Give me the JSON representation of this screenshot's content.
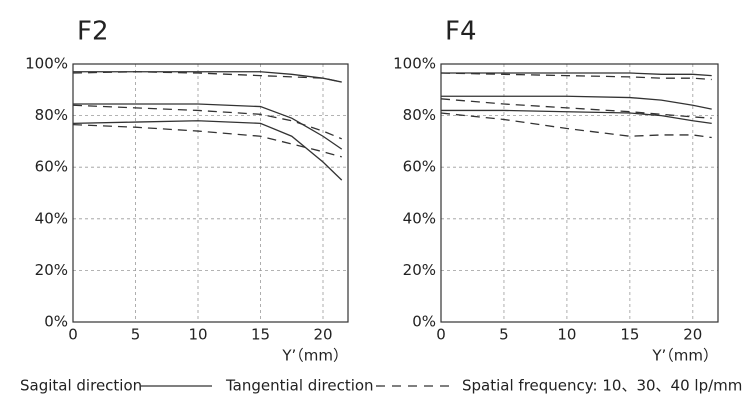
{
  "chart_data": [
    {
      "type": "line",
      "title": "F2",
      "x_label": "Y’（mm）",
      "x": [
        0,
        5,
        10,
        15,
        17.5,
        20,
        21.5
      ],
      "xlim": [
        0,
        22
      ],
      "xticks": [
        0,
        5,
        10,
        15,
        20
      ],
      "ylim": [
        0,
        100
      ],
      "yticks": [
        {
          "value": 0,
          "label": "0%"
        },
        {
          "value": 20,
          "label": "20%"
        },
        {
          "value": 40,
          "label": "40%"
        },
        {
          "value": 60,
          "label": "60%"
        },
        {
          "value": 80,
          "label": "80%"
        },
        {
          "value": 100,
          "label": "100%"
        }
      ],
      "grid": true,
      "series": [
        {
          "style": "solid",
          "color": "#333333",
          "values": [
            97,
            97,
            97,
            97,
            96,
            94.5,
            93
          ]
        },
        {
          "style": "dashed",
          "color": "#333333",
          "values": [
            96.5,
            97,
            96.5,
            95.5,
            95,
            94.5,
            93
          ]
        },
        {
          "style": "solid",
          "color": "#333333",
          "values": [
            84.5,
            84.5,
            84.5,
            83.5,
            79,
            72,
            67
          ]
        },
        {
          "style": "dashed",
          "color": "#333333",
          "values": [
            84,
            83,
            82,
            80.5,
            78,
            74,
            71
          ]
        },
        {
          "style": "solid",
          "color": "#333333",
          "values": [
            77,
            77.5,
            78,
            77,
            72,
            62,
            55
          ]
        },
        {
          "style": "dashed",
          "color": "#333333",
          "values": [
            76.5,
            75.5,
            74,
            72,
            69,
            66,
            64
          ]
        }
      ]
    },
    {
      "type": "line",
      "title": "F4",
      "x_label": "Y’（mm）",
      "x": [
        0,
        5,
        10,
        15,
        17.5,
        20,
        21.5
      ],
      "xlim": [
        0,
        22
      ],
      "xticks": [
        0,
        5,
        10,
        15,
        20
      ],
      "ylim": [
        0,
        100
      ],
      "yticks": [
        {
          "value": 0,
          "label": "0%"
        },
        {
          "value": 20,
          "label": "20%"
        },
        {
          "value": 40,
          "label": "40%"
        },
        {
          "value": 60,
          "label": "60%"
        },
        {
          "value": 80,
          "label": "80%"
        },
        {
          "value": 100,
          "label": "100%"
        }
      ],
      "grid": true,
      "series": [
        {
          "style": "solid",
          "color": "#333333",
          "values": [
            96.5,
            96.5,
            96.5,
            96.5,
            96,
            96,
            95.5
          ]
        },
        {
          "style": "dashed",
          "color": "#333333",
          "values": [
            96.5,
            96,
            95.5,
            95,
            94.5,
            94.5,
            94
          ]
        },
        {
          "style": "solid",
          "color": "#333333",
          "values": [
            87.5,
            87.5,
            87.5,
            87,
            86,
            84,
            82.5
          ]
        },
        {
          "style": "dashed",
          "color": "#333333",
          "values": [
            86.5,
            84.5,
            83,
            81.5,
            80.5,
            79.5,
            79
          ]
        },
        {
          "style": "solid",
          "color": "#333333",
          "values": [
            82,
            82,
            81.5,
            81,
            80,
            78,
            77
          ]
        },
        {
          "style": "dashed",
          "color": "#333333",
          "values": [
            81,
            78.5,
            75,
            72,
            72.5,
            72.5,
            71.5
          ]
        }
      ]
    }
  ],
  "legend": {
    "solid": "Sagital direction",
    "dashed": "Tangential direction",
    "note": "Spatial frequency: 10、30、40 lp/mm"
  }
}
